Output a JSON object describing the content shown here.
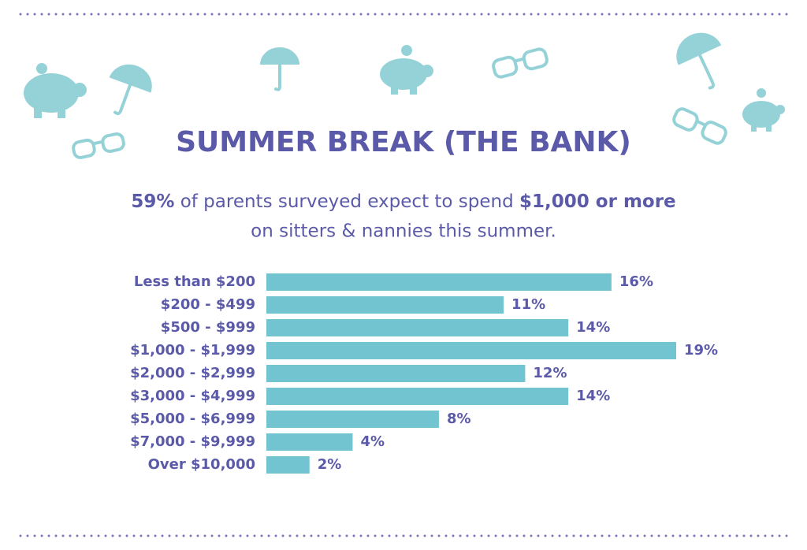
{
  "chart_data": {
    "type": "bar",
    "orientation": "horizontal",
    "title": "SUMMER BREAK (THE BANK)",
    "subtitle": [
      "59%",
      " of parents surveyed expect to spend ",
      "$1,000 or more",
      "on sitters & nannies this summer."
    ],
    "categories": [
      "Less than $200",
      "$200 - $499",
      "$500 - $999",
      "$1,000 - $1,999",
      "$2,000 - $2,999",
      "$3,000 - $4,999",
      "$5,000 - $6,999",
      "$7,000 - $9,999",
      "Over $10,000"
    ],
    "values": [
      16,
      11,
      14,
      19,
      12,
      14,
      8,
      4,
      2
    ],
    "value_labels": [
      "16%",
      "11%",
      "14%",
      "19%",
      "12%",
      "14%",
      "8%",
      "4%",
      "2%"
    ],
    "color": "#72c5d0"
  }
}
